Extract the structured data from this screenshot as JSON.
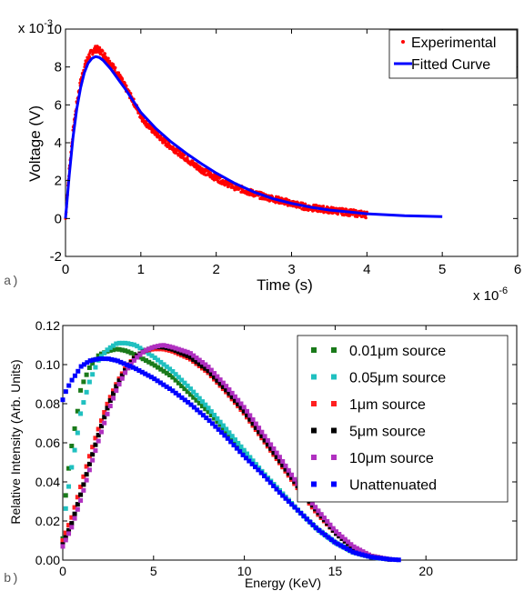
{
  "chart_data": [
    {
      "type": "line",
      "panel_label": "a)",
      "xlabel": "Time (s)",
      "ylabel": "Voltage (V)",
      "x_multiplier": "x 10",
      "x_multiplier_exp": "-6",
      "y_multiplier": "x 10",
      "y_multiplier_exp": "-3",
      "xlim": [
        0,
        6
      ],
      "ylim": [
        -2,
        10
      ],
      "xticks": [
        "0",
        "1",
        "2",
        "3",
        "4",
        "5",
        "6"
      ],
      "yticks": [
        "-2",
        "0",
        "2",
        "4",
        "6",
        "8",
        "10"
      ],
      "grid": false,
      "legend_position": "top-right",
      "series": [
        {
          "name": "Experimental",
          "style": "dots",
          "color": "#ff0000",
          "x": [
            0,
            0.05,
            0.1,
            0.15,
            0.2,
            0.25,
            0.3,
            0.35,
            0.4,
            0.45,
            0.5,
            0.55,
            0.6,
            0.7,
            0.8,
            0.9,
            1.0,
            1.1,
            1.2,
            1.3,
            1.4,
            1.5,
            1.6,
            1.7,
            1.8,
            1.9,
            2.0,
            2.2,
            2.4,
            2.6,
            2.8,
            3.0,
            3.2,
            3.4,
            3.6,
            3.8,
            4.0
          ],
          "y": [
            0,
            2.6,
            4.6,
            6.1,
            7.2,
            8.0,
            8.5,
            8.8,
            8.95,
            8.9,
            8.7,
            8.45,
            8.2,
            7.6,
            6.9,
            6.2,
            5.4,
            4.9,
            4.5,
            4.1,
            3.8,
            3.5,
            3.2,
            2.85,
            2.6,
            2.35,
            2.15,
            1.75,
            1.45,
            1.2,
            1.0,
            0.8,
            0.6,
            0.5,
            0.4,
            0.3,
            0.2
          ]
        },
        {
          "name": "Fitted Curve",
          "style": "line",
          "color": "#0000ff",
          "x": [
            0,
            0.05,
            0.1,
            0.15,
            0.2,
            0.25,
            0.3,
            0.35,
            0.4,
            0.45,
            0.5,
            0.6,
            0.7,
            0.8,
            0.9,
            1.0,
            1.2,
            1.4,
            1.6,
            1.8,
            2.0,
            2.25,
            2.5,
            2.75,
            3.0,
            3.25,
            3.5,
            3.75,
            4.0,
            4.5,
            5.0
          ],
          "y": [
            0,
            2.3,
            4.3,
            5.8,
            6.9,
            7.7,
            8.2,
            8.45,
            8.55,
            8.5,
            8.35,
            7.9,
            7.35,
            6.8,
            6.2,
            5.6,
            4.75,
            4.05,
            3.45,
            2.9,
            2.4,
            1.85,
            1.4,
            1.05,
            0.8,
            0.6,
            0.45,
            0.35,
            0.25,
            0.15,
            0.1
          ]
        }
      ]
    },
    {
      "type": "scatter",
      "panel_label": "b)",
      "xlabel": "Energy (KeV)",
      "ylabel": "Relative Intensity (Arb. Units)",
      "xlim": [
        0,
        25
      ],
      "ylim": [
        0,
        0.12
      ],
      "xticks": [
        "0",
        "5",
        "10",
        "15",
        "20"
      ],
      "yticks": [
        "0.00",
        "0.02",
        "0.04",
        "0.06",
        "0.08",
        "0.10",
        "0.12"
      ],
      "grid": false,
      "legend_position": "top-right",
      "series": [
        {
          "name": "0.01μm   source",
          "color": "#1a7a1a",
          "x": [
            0,
            0.2,
            0.5,
            0.8,
            1.0,
            1.5,
            2.0,
            2.5,
            3.0,
            3.5,
            4.0,
            5.0,
            6.0,
            7.0,
            8.0,
            9.0,
            10.0,
            11.0,
            12.0,
            13.0,
            14.0,
            15.0,
            16.0,
            17.0,
            18.0
          ],
          "y": [
            0.011,
            0.038,
            0.059,
            0.075,
            0.088,
            0.099,
            0.105,
            0.107,
            0.108,
            0.107,
            0.105,
            0.1,
            0.094,
            0.085,
            0.076,
            0.066,
            0.055,
            0.045,
            0.035,
            0.025,
            0.016,
            0.009,
            0.004,
            0.0015,
            0.0003
          ]
        },
        {
          "name": "0.05μm   source",
          "color": "#20c0c0",
          "x": [
            0,
            0.2,
            0.5,
            0.8,
            1.0,
            1.5,
            2.0,
            2.5,
            3.0,
            3.5,
            4.0,
            5.0,
            6.0,
            7.0,
            8.0,
            9.0,
            10.0,
            11.0,
            12.0,
            13.0,
            14.0,
            15.0,
            16.0,
            17.0,
            18.0
          ],
          "y": [
            0.01,
            0.03,
            0.048,
            0.064,
            0.076,
            0.092,
            0.103,
            0.108,
            0.111,
            0.111,
            0.11,
            0.104,
            0.097,
            0.088,
            0.078,
            0.067,
            0.056,
            0.045,
            0.035,
            0.025,
            0.016,
            0.009,
            0.004,
            0.0015,
            0.0003
          ]
        },
        {
          "name": "1μm   source",
          "color": "#ff2020",
          "x": [
            0,
            0.5,
            1.0,
            1.5,
            2.0,
            2.5,
            3.0,
            3.5,
            4.0,
            4.5,
            5.0,
            5.5,
            6.0,
            7.0,
            8.0,
            9.0,
            10.0,
            11.0,
            12.0,
            13.0,
            14.0,
            15.0,
            16.0,
            17.0,
            18.0
          ],
          "y": [
            0.01,
            0.022,
            0.038,
            0.054,
            0.068,
            0.081,
            0.091,
            0.099,
            0.104,
            0.107,
            0.108,
            0.108,
            0.107,
            0.103,
            0.096,
            0.086,
            0.075,
            0.062,
            0.049,
            0.036,
            0.024,
            0.014,
            0.006,
            0.002,
            0.0004
          ]
        },
        {
          "name": "5μm   source",
          "color": "#000000",
          "x": [
            0,
            0.5,
            1.0,
            1.5,
            2.0,
            2.5,
            3.0,
            3.5,
            4.0,
            4.5,
            5.0,
            5.5,
            6.0,
            7.0,
            8.0,
            9.0,
            10.0,
            11.0,
            12.0,
            13.0,
            14.0,
            15.0,
            16.0,
            17.0,
            18.0
          ],
          "y": [
            0.008,
            0.019,
            0.034,
            0.05,
            0.065,
            0.079,
            0.09,
            0.098,
            0.104,
            0.107,
            0.109,
            0.109,
            0.108,
            0.104,
            0.097,
            0.087,
            0.076,
            0.063,
            0.05,
            0.037,
            0.025,
            0.014,
            0.006,
            0.002,
            0.0004
          ]
        },
        {
          "name": "10μm   source",
          "color": "#b030c0",
          "x": [
            0,
            0.5,
            1.0,
            1.5,
            2.0,
            2.5,
            3.0,
            3.5,
            4.0,
            4.5,
            5.0,
            5.5,
            6.0,
            7.0,
            8.0,
            9.0,
            10.0,
            11.0,
            12.0,
            13.0,
            14.0,
            15.0,
            16.0,
            17.0,
            18.0
          ],
          "y": [
            0.007,
            0.017,
            0.031,
            0.047,
            0.062,
            0.076,
            0.088,
            0.097,
            0.103,
            0.107,
            0.109,
            0.11,
            0.109,
            0.106,
            0.099,
            0.089,
            0.078,
            0.065,
            0.052,
            0.038,
            0.026,
            0.015,
            0.007,
            0.002,
            0.0004
          ]
        },
        {
          "name": "Unattenuated",
          "color": "#0000ff",
          "x": [
            0,
            0.2,
            0.5,
            0.8,
            1.0,
            1.5,
            2.0,
            2.5,
            3.0,
            3.5,
            4.0,
            5.0,
            6.0,
            7.0,
            8.0,
            9.0,
            10.0,
            11.0,
            12.0,
            13.0,
            14.0,
            15.0,
            16.0,
            17.0,
            18.0,
            18.5
          ],
          "y": [
            0.082,
            0.087,
            0.092,
            0.096,
            0.099,
            0.102,
            0.103,
            0.103,
            0.102,
            0.1,
            0.098,
            0.093,
            0.087,
            0.08,
            0.072,
            0.063,
            0.053,
            0.044,
            0.034,
            0.025,
            0.016,
            0.009,
            0.004,
            0.0015,
            0.0004,
            0.0001
          ]
        }
      ]
    }
  ]
}
